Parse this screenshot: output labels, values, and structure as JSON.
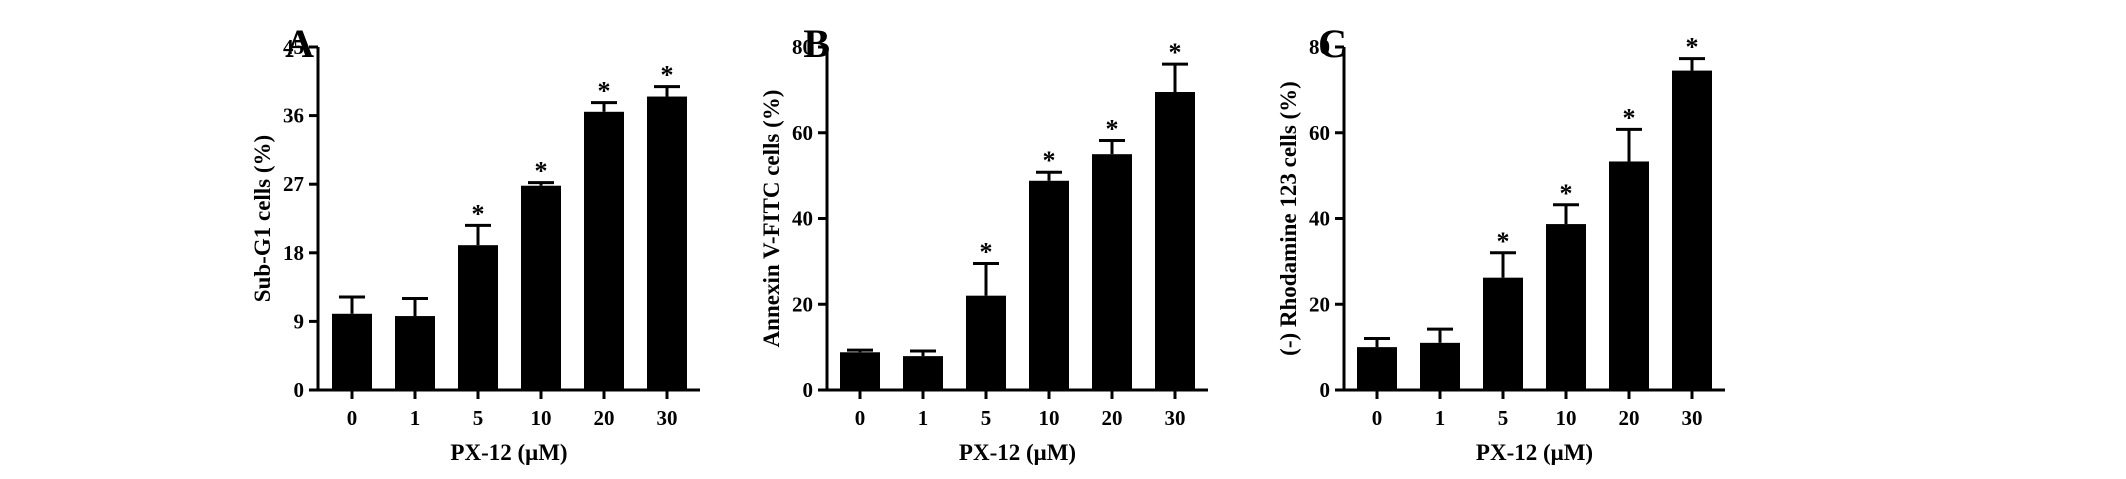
{
  "chart_data": [
    {
      "type": "bar",
      "panel_label": "A",
      "categories": [
        "0",
        "1",
        "5",
        "10",
        "20",
        "30"
      ],
      "values": [
        10,
        9.7,
        19,
        26.8,
        36.5,
        38.5
      ],
      "errors": [
        2.2,
        2.3,
        2.6,
        0.4,
        1.2,
        1.3
      ],
      "significant": [
        false,
        false,
        true,
        true,
        true,
        true
      ],
      "significance_marker": "*",
      "xlabel": "PX-12 (μM)",
      "ylabel": "Sub-G1 cells (%)",
      "ylim": [
        0,
        45
      ],
      "yticks": [
        0,
        9,
        18,
        27,
        36,
        45
      ]
    },
    {
      "type": "bar",
      "panel_label": "B",
      "categories": [
        "0",
        "1",
        "5",
        "10",
        "20",
        "30"
      ],
      "values": [
        8.8,
        7.9,
        22,
        48.8,
        55,
        69.5
      ],
      "errors": [
        0.5,
        1.2,
        7.5,
        2,
        3.2,
        6.5
      ],
      "significant": [
        false,
        false,
        true,
        true,
        true,
        true
      ],
      "significance_marker": "*",
      "xlabel": "PX-12 (μM)",
      "ylabel": "Annexin V-FITC cells (%)",
      "ylim": [
        0,
        80
      ],
      "yticks": [
        0,
        20,
        40,
        60,
        80
      ]
    },
    {
      "type": "bar",
      "panel_label": "C",
      "categories": [
        "0",
        "1",
        "5",
        "10",
        "20",
        "30"
      ],
      "values": [
        10,
        11,
        26.2,
        38.7,
        53.3,
        74.5
      ],
      "errors": [
        2,
        3.2,
        5.8,
        4.5,
        7.5,
        2.8
      ],
      "significant": [
        false,
        false,
        true,
        true,
        true,
        true
      ],
      "significance_marker": "*",
      "xlabel": "PX-12 (μM)",
      "ylabel": "(-) Rhodamine 123 cells (%)",
      "ylim": [
        0,
        80
      ],
      "yticks": [
        0,
        20,
        40,
        60,
        80
      ]
    }
  ]
}
